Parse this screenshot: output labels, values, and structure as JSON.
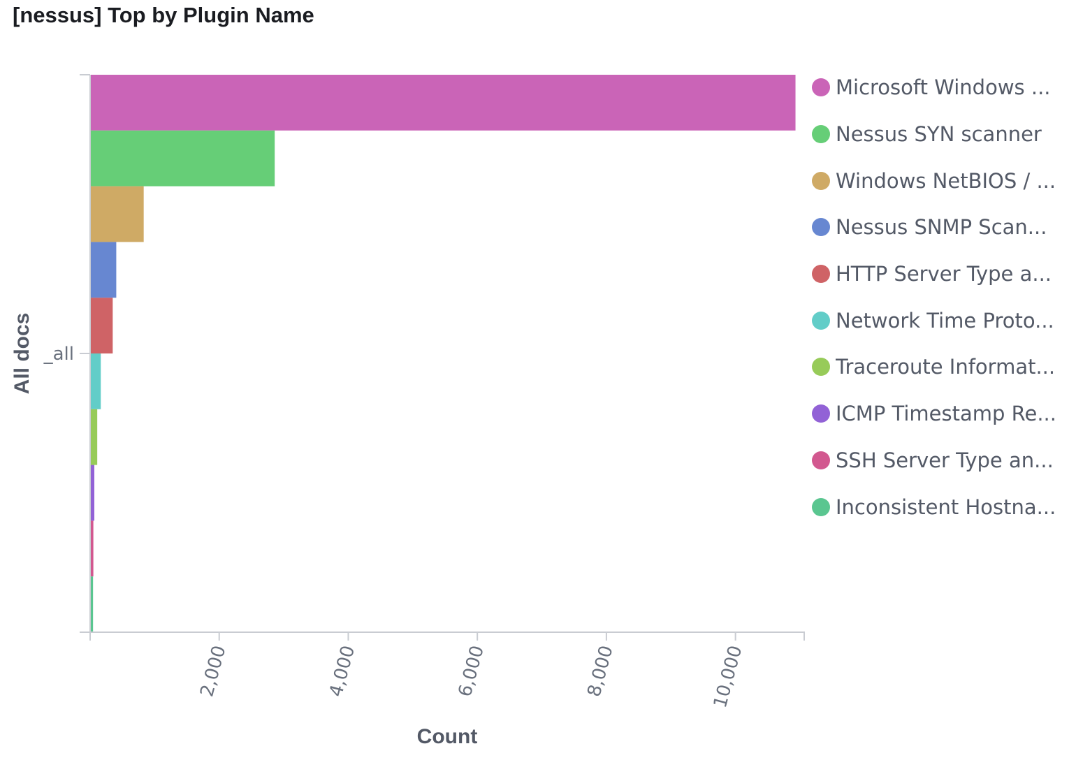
{
  "panel": {
    "title": "[nessus] Top by Plugin Name"
  },
  "chart_data": {
    "type": "bar",
    "orientation": "horizontal",
    "title": "[nessus] Top by Plugin Name",
    "xlabel": "Count",
    "ylabel": "All docs",
    "category": "_all",
    "xlim": [
      0,
      11000
    ],
    "xticks": [
      {
        "value": 2000,
        "label": "2,000"
      },
      {
        "value": 4000,
        "label": "4,000"
      },
      {
        "value": 6000,
        "label": "6,000"
      },
      {
        "value": 8000,
        "label": "8,000"
      },
      {
        "value": 10000,
        "label": "10,000"
      }
    ],
    "grid": false,
    "legend_position": "right",
    "series": [
      {
        "name": "Microsoft Windows ...",
        "value": 10930,
        "color": "#ca64b7"
      },
      {
        "name": "Nessus SYN scanner",
        "value": 2860,
        "color": "#66ce77"
      },
      {
        "name": "Windows NetBIOS / ...",
        "value": 830,
        "color": "#cfaa65"
      },
      {
        "name": "Nessus SNMP Scan...",
        "value": 405,
        "color": "#6787d1"
      },
      {
        "name": "HTTP Server Type a...",
        "value": 350,
        "color": "#cf6366"
      },
      {
        "name": "Network Time Proto...",
        "value": 165,
        "color": "#62cdc8"
      },
      {
        "name": "Traceroute Informat...",
        "value": 110,
        "color": "#97cb59"
      },
      {
        "name": "ICMP Timestamp Re...",
        "value": 65,
        "color": "#9262d6"
      },
      {
        "name": "SSH Server Type an...",
        "value": 50,
        "color": "#d2588f"
      },
      {
        "name": "Inconsistent Hostna...",
        "value": 45,
        "color": "#5ac690"
      }
    ]
  }
}
